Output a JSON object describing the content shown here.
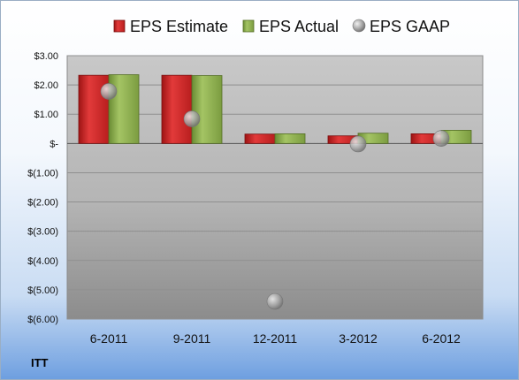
{
  "chart_data": {
    "type": "bar",
    "title": "",
    "xlabel": "",
    "ylabel": "",
    "categories": [
      "6-2011",
      "9-2011",
      "12-2011",
      "3-2012",
      "6-2012"
    ],
    "series": [
      {
        "name": "EPS Estimate",
        "type": "bar",
        "color": "#d42a2a",
        "values": [
          2.33,
          2.33,
          0.32,
          0.26,
          0.33
        ]
      },
      {
        "name": "EPS Actual",
        "type": "bar",
        "color": "#8aab4a",
        "values": [
          2.35,
          2.32,
          0.33,
          0.35,
          0.45
        ]
      },
      {
        "name": "EPS GAAP",
        "type": "scatter",
        "color": "#a9a9a9",
        "values": [
          1.78,
          0.84,
          -5.4,
          -0.02,
          0.17
        ]
      }
    ],
    "ylim": [
      -6,
      3
    ],
    "yticks": [
      3,
      2,
      1,
      0,
      -1,
      -2,
      -3,
      -4,
      -5,
      -6
    ],
    "ytick_labels": [
      "$3.00",
      "$2.00",
      "$1.00",
      "$-",
      "$(1.00)",
      "$(2.00)",
      "$(3.00)",
      "$(4.00)",
      "$(5.00)",
      "$(6.00)"
    ],
    "grid": true,
    "legend_position": "top"
  },
  "footer": {
    "ticker": "ITT"
  }
}
